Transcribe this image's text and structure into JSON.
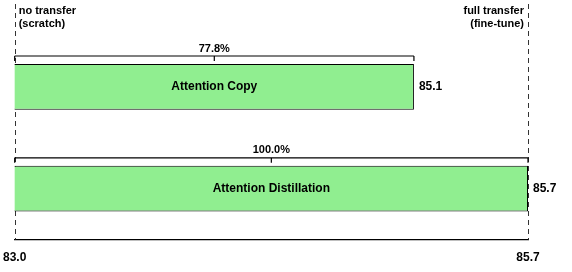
{
  "chart_data": {
    "type": "bar",
    "orientation": "horizontal",
    "categories": [
      "Attention Copy",
      "Attention Distillation"
    ],
    "values": [
      85.1,
      85.7
    ],
    "color": "#90EE90",
    "xlim": [
      83.0,
      85.7
    ],
    "xticks": [
      {
        "value": 83.0,
        "label": "83.0"
      },
      85.7
    ],
    "grid": true,
    "data_labels": true,
    "tick_labels": "x",
    "bracket_labels": [
      "77.8%",
      "100.0%"
    ],
    "annotations": [
      "no transfer\n(scratch)",
      "full transfer\n(fine-tune)"
    ]
  }
}
